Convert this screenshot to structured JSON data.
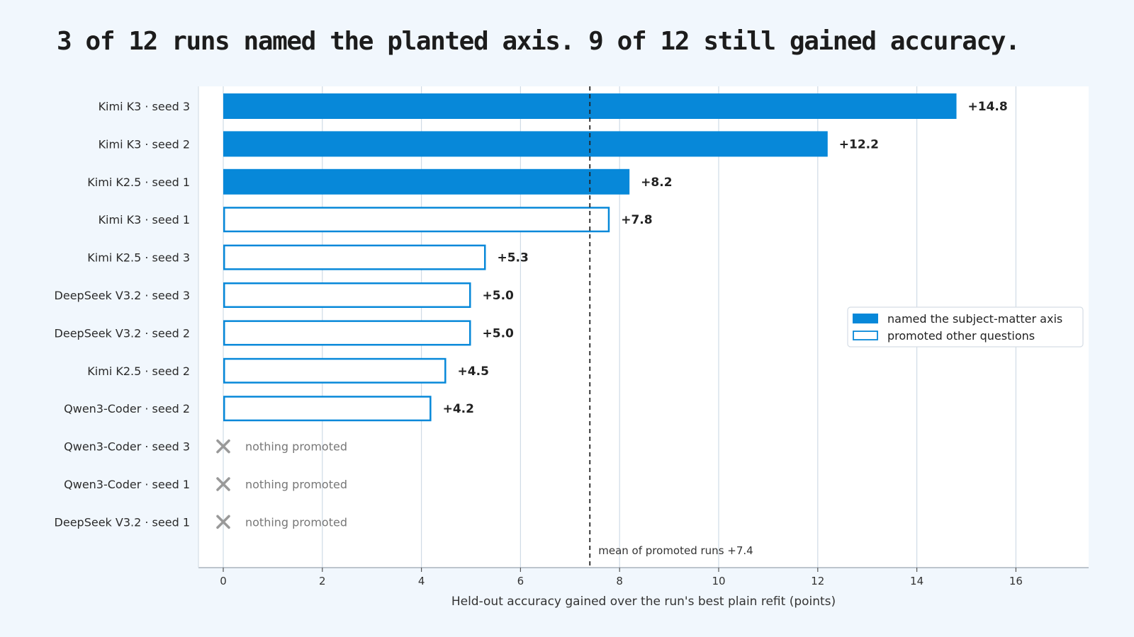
{
  "title": "3 of 12 runs named the planted axis. 9 of 12 still gained accuracy.",
  "chart_data": {
    "type": "bar",
    "orientation": "horizontal",
    "categories": [
      "Kimi K3 · seed 3",
      "Kimi K3 · seed 2",
      "Kimi K2.5 · seed 1",
      "Kimi K3 · seed 1",
      "Kimi K2.5 · seed 3",
      "DeepSeek V3.2 · seed 3",
      "DeepSeek V3.2 · seed 2",
      "Kimi K2.5 · seed 2",
      "Qwen3-Coder · seed 2",
      "Qwen3-Coder · seed 3",
      "Qwen3-Coder · seed 1",
      "DeepSeek V3.2 · seed 1"
    ],
    "values": [
      14.8,
      12.2,
      8.2,
      7.8,
      5.3,
      5.0,
      5.0,
      4.5,
      4.2,
      null,
      null,
      null
    ],
    "value_labels": [
      "+14.8",
      "+12.2",
      "+8.2",
      "+7.8",
      "+5.3",
      "+5.0",
      "+5.0",
      "+4.5",
      "+4.2",
      "",
      "",
      ""
    ],
    "group": [
      "named",
      "named",
      "named",
      "other",
      "other",
      "other",
      "other",
      "other",
      "other",
      "none",
      "none",
      "none"
    ],
    "none_label": "nothing promoted",
    "legend": [
      {
        "key": "named",
        "label": "named the subject-matter axis"
      },
      {
        "key": "other",
        "label": "promoted other questions"
      }
    ],
    "legend_position": "right",
    "mean": {
      "value": 7.4,
      "label": "mean of promoted runs +7.4"
    },
    "xlabel": "Held-out accuracy gained over the run's best plain refit (points)",
    "ylabel": "",
    "xlim": [
      -0.5,
      17.5
    ],
    "xticks": [
      0,
      2,
      4,
      6,
      8,
      10,
      12,
      14,
      16
    ],
    "grid": "vertical",
    "colors": {
      "named": "#0788d9",
      "other_edge": "#0788d9",
      "none_marker": "#999999",
      "mean_line": "#222222",
      "grid": "#cfdbe6"
    }
  }
}
